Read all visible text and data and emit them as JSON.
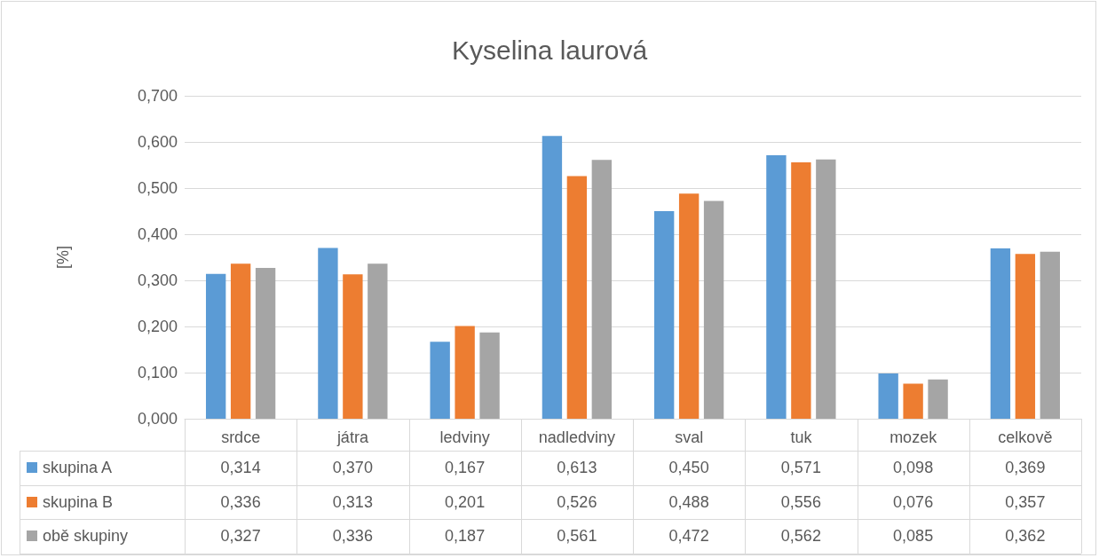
{
  "chart_data": {
    "type": "bar",
    "title": "Kyselina laurová",
    "ylabel": "[%]",
    "categories": [
      "srdce",
      "játra",
      "ledviny",
      "nadledviny",
      "sval",
      "tuk",
      "mozek",
      "celkově"
    ],
    "series": [
      {
        "name": "skupina A",
        "color": "#5b9bd5",
        "values": [
          0.314,
          0.37,
          0.167,
          0.613,
          0.45,
          0.571,
          0.098,
          0.369
        ],
        "value_labels": [
          "0,314",
          "0,370",
          "0,167",
          "0,613",
          "0,450",
          "0,571",
          "0,098",
          "0,369"
        ]
      },
      {
        "name": "skupina B",
        "color": "#ed7d31",
        "values": [
          0.336,
          0.313,
          0.201,
          0.526,
          0.488,
          0.556,
          0.076,
          0.357
        ],
        "value_labels": [
          "0,336",
          "0,313",
          "0,201",
          "0,526",
          "0,488",
          "0,556",
          "0,076",
          "0,357"
        ]
      },
      {
        "name": "obě skupiny",
        "color": "#a5a5a5",
        "values": [
          0.327,
          0.336,
          0.187,
          0.561,
          0.472,
          0.562,
          0.085,
          0.362
        ],
        "value_labels": [
          "0,327",
          "0,336",
          "0,187",
          "0,561",
          "0,472",
          "0,562",
          "0,085",
          "0,362"
        ]
      }
    ],
    "ylim": [
      0,
      0.7
    ],
    "yticks": [
      {
        "value": 0,
        "label": "0,000"
      },
      {
        "value": 0.1,
        "label": "0,100"
      },
      {
        "value": 0.2,
        "label": "0,200"
      },
      {
        "value": 0.3,
        "label": "0,300"
      },
      {
        "value": 0.4,
        "label": "0,400"
      },
      {
        "value": 0.5,
        "label": "0,500"
      },
      {
        "value": 0.6,
        "label": "0,600"
      },
      {
        "value": 0.7,
        "label": "0,700"
      }
    ],
    "grid": "y",
    "legend": "bottom"
  }
}
